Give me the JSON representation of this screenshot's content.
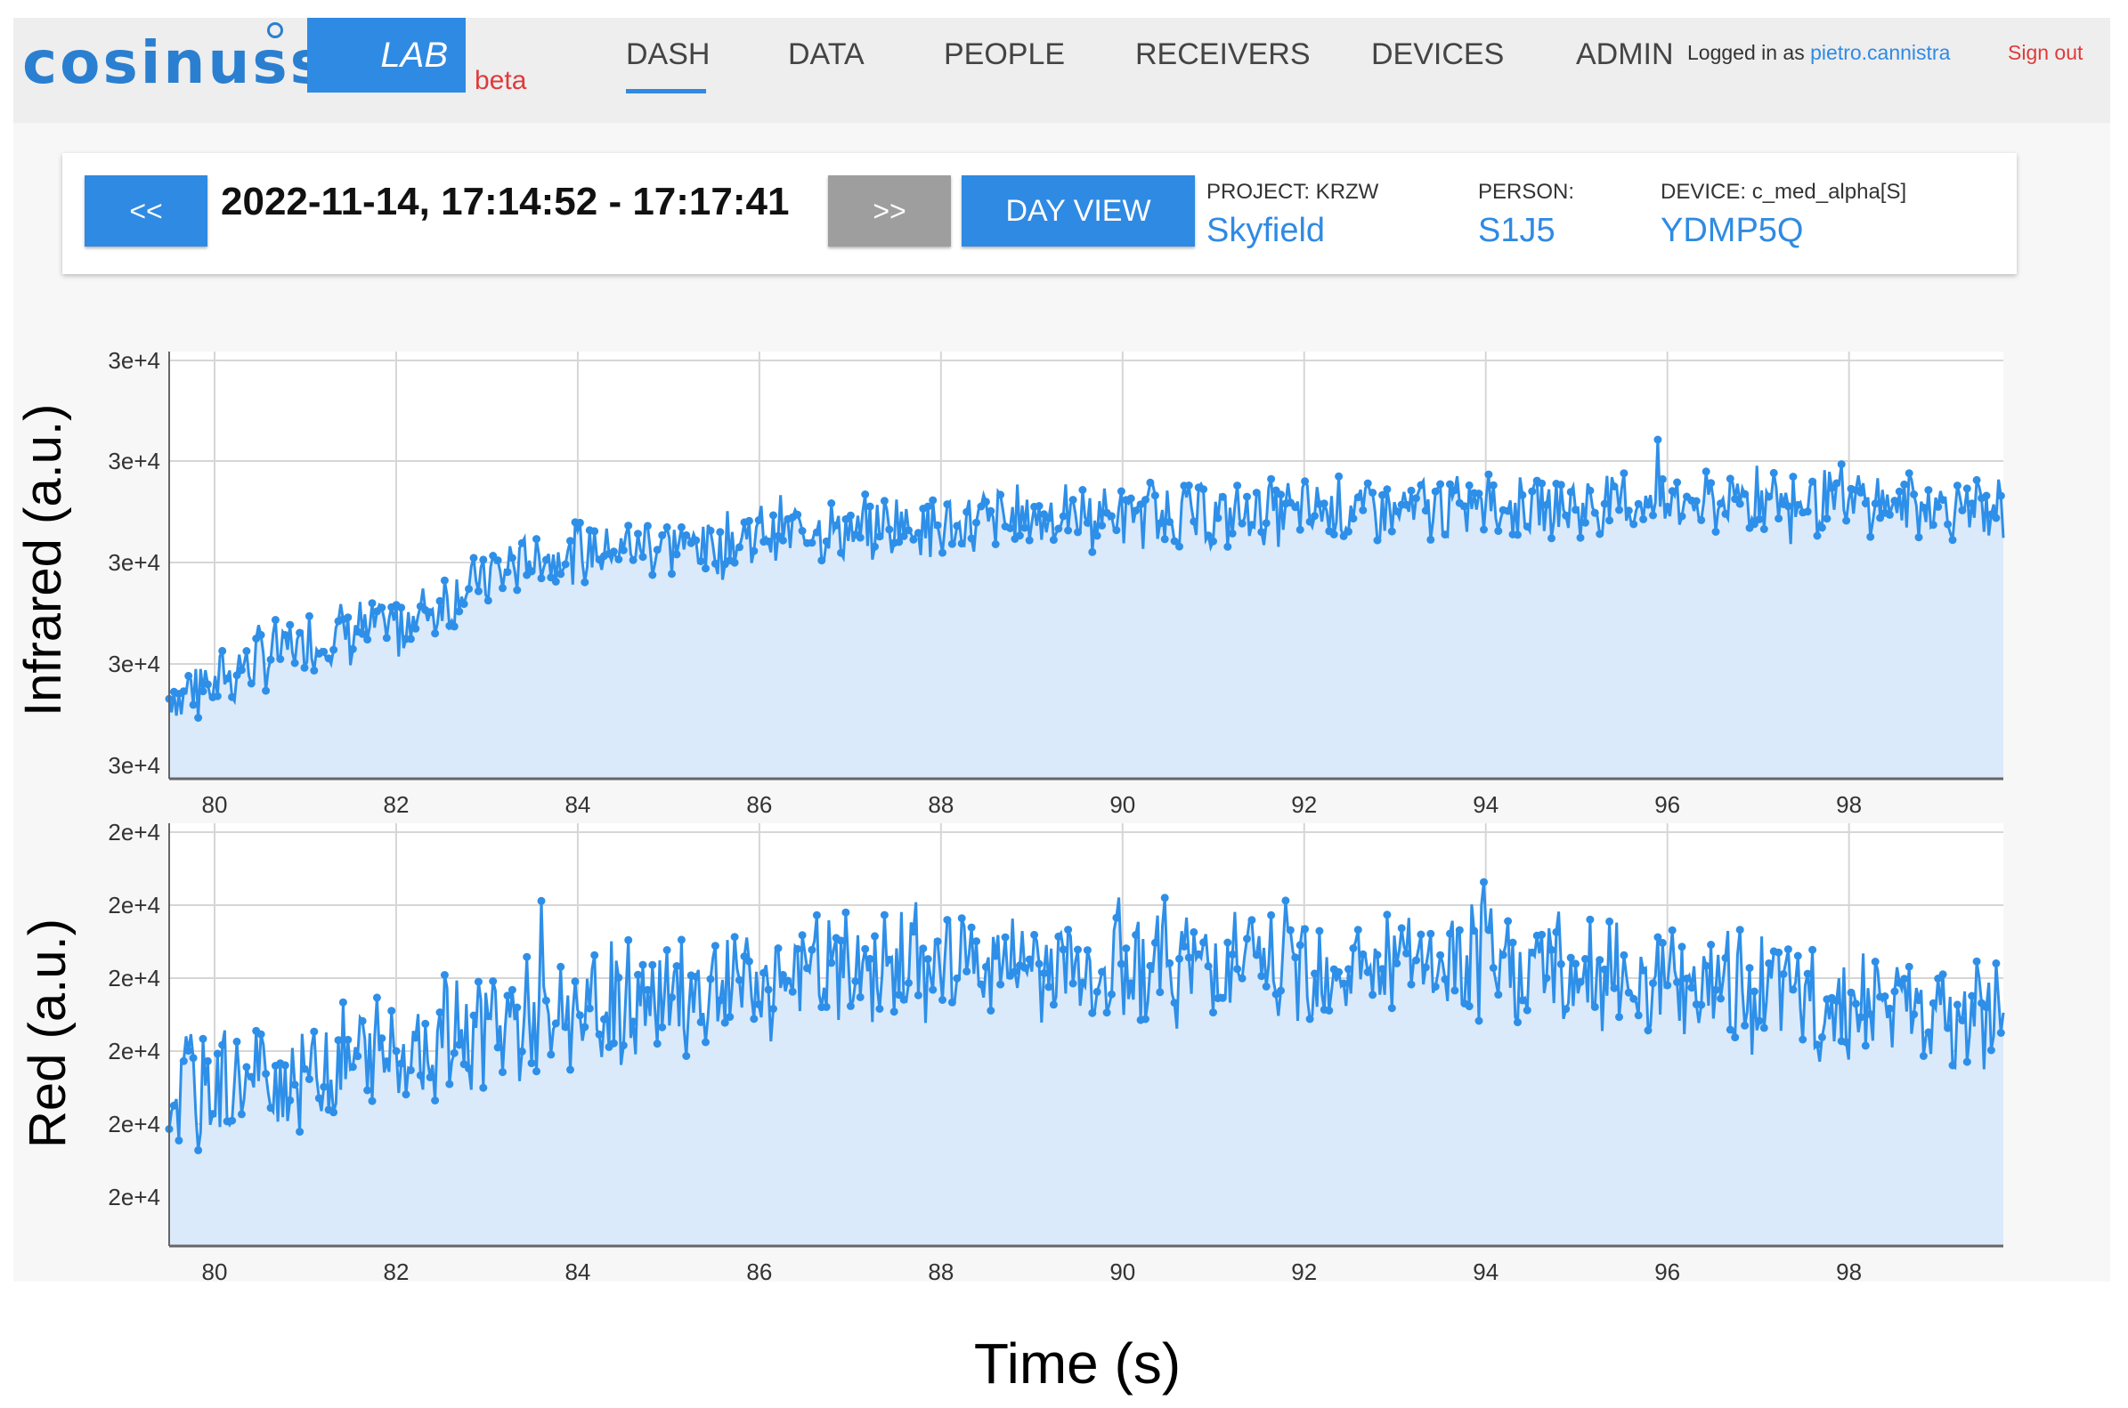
{
  "header": {
    "logo_text": "cosinuss",
    "lab_badge": "LAB",
    "beta_label": "beta",
    "nav": [
      "DASH",
      "DATA",
      "PEOPLE",
      "RECEIVERS",
      "DEVICES",
      "ADMIN"
    ],
    "active_nav": "DASH",
    "login_prefix": "Logged in as",
    "login_user": "pietro.cannistra",
    "sign_out": "Sign out"
  },
  "controls": {
    "prev_label": "<<",
    "next_label": ">>",
    "datetime_range": "2022-11-14, 17:14:52 - 17:17:41",
    "day_view_label": "DAY VIEW",
    "project_label": "PROJECT: KRZW",
    "project_value": "Skyfield",
    "person_label": "PERSON:",
    "person_value": "S1J5",
    "device_label": "DEVICE: c_med_alpha[S]",
    "device_value": "YDMP5Q"
  },
  "colors": {
    "accent": "#2f8ae3",
    "series_line": "#2e8fe8",
    "area_fill": "#dbeafb",
    "grid": "#d6d6d6"
  },
  "chart_data": [
    {
      "type": "line",
      "ylabel": "Infrared (a.u.)",
      "xlabel": "",
      "x_ticks": [
        "80",
        "82",
        "84",
        "86",
        "88",
        "90",
        "92",
        "94",
        "96",
        "98"
      ],
      "y_ticks": [
        "3e+4",
        "3e+4",
        "3e+4",
        "3e+4",
        "3e+4"
      ],
      "xlim": [
        79.5,
        99.7
      ],
      "ylim": [
        0,
        4.25
      ],
      "grid": true,
      "area": true,
      "x_start": 79.5,
      "x_step": 0.5,
      "series": [
        {
          "values": [
            0.8,
            0.95,
            1.2,
            1.35,
            1.45,
            1.5,
            1.75,
            2.0,
            2.2,
            2.25,
            2.3,
            2.35,
            2.3,
            2.45,
            2.5,
            2.45,
            2.55,
            2.5,
            2.55,
            2.6,
            2.6,
            2.62,
            2.65,
            2.6,
            2.65,
            2.66,
            2.68,
            2.65,
            2.7,
            2.72,
            2.7,
            2.7,
            2.75,
            2.72,
            2.74,
            2.76,
            2.75,
            2.76,
            2.74,
            2.72,
            2.7
          ]
        }
      ]
    },
    {
      "type": "line",
      "ylabel": "Red (a.u.)",
      "xlabel": "Time (s)",
      "x_ticks": [
        "80",
        "82",
        "84",
        "86",
        "88",
        "90",
        "92",
        "94",
        "96",
        "98"
      ],
      "y_ticks": [
        "2e+4",
        "2e+4",
        "2e+4",
        "2e+4",
        "2e+4",
        "2e+4"
      ],
      "xlim": [
        79.5,
        99.7
      ],
      "ylim": [
        0,
        5.6
      ],
      "grid": true,
      "area": true,
      "x_start": 79.5,
      "x_step": 0.5,
      "series": [
        {
          "values": [
            2.0,
            2.1,
            2.2,
            2.3,
            2.45,
            2.6,
            2.75,
            2.9,
            3.0,
            3.1,
            3.2,
            3.3,
            3.4,
            3.5,
            3.6,
            3.65,
            3.7,
            3.72,
            3.74,
            3.75,
            3.76,
            3.76,
            3.75,
            3.74,
            3.72,
            3.72,
            3.7,
            3.7,
            3.7,
            3.68,
            3.66,
            3.62,
            3.55,
            3.5,
            3.45,
            3.35,
            3.28,
            3.2,
            3.12,
            3.05,
            3.0
          ]
        }
      ]
    }
  ]
}
